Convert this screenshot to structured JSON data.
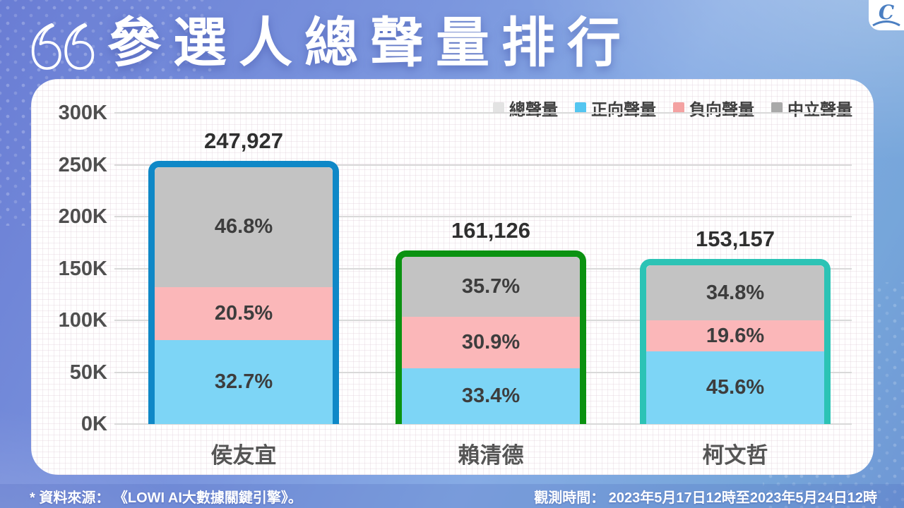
{
  "header": {
    "title": "參選人總聲量排行",
    "logo_letter": "C"
  },
  "footer": {
    "source": "* 資料來源： 《LOWI AI大數據關鍵引擎》。",
    "period": "觀測時間： 2023年5月17日12時至2023年5月24日12時"
  },
  "chart_data": {
    "type": "bar",
    "subtype": "stacked-bar-with-percent-labels",
    "title": "參選人總聲量排行",
    "categories": [
      "侯友宜",
      "賴清德",
      "柯文哲"
    ],
    "totals": [
      247927,
      161126,
      153157
    ],
    "total_labels": [
      "247,927",
      "161,126",
      "153,157"
    ],
    "series": [
      {
        "name": "正向聲量",
        "color": "#7dd5f6",
        "pct": [
          32.7,
          33.4,
          45.6
        ]
      },
      {
        "name": "負向聲量",
        "color": "#fbb7b9",
        "pct": [
          20.5,
          30.9,
          19.6
        ]
      },
      {
        "name": "中立聲量",
        "color": "#c3c3c3",
        "pct": [
          46.8,
          35.7,
          34.8
        ]
      }
    ],
    "bar_outline_colors": [
      "#0f88c7",
      "#0b9211",
      "#2cc3b5"
    ],
    "y_ticks": [
      "300K",
      "250K",
      "200K",
      "150K",
      "100K",
      "50K",
      "0K"
    ],
    "y_max_value": 300000,
    "grid": true,
    "legend_position": "top-right",
    "legend": [
      {
        "label": "總聲量",
        "color": "#e3e3e3"
      },
      {
        "label": "正向聲量",
        "color": "#54c6f0"
      },
      {
        "label": "負向聲量",
        "color": "#f4a2a2"
      },
      {
        "label": "中立聲量",
        "color": "#a9a9a9"
      }
    ]
  }
}
